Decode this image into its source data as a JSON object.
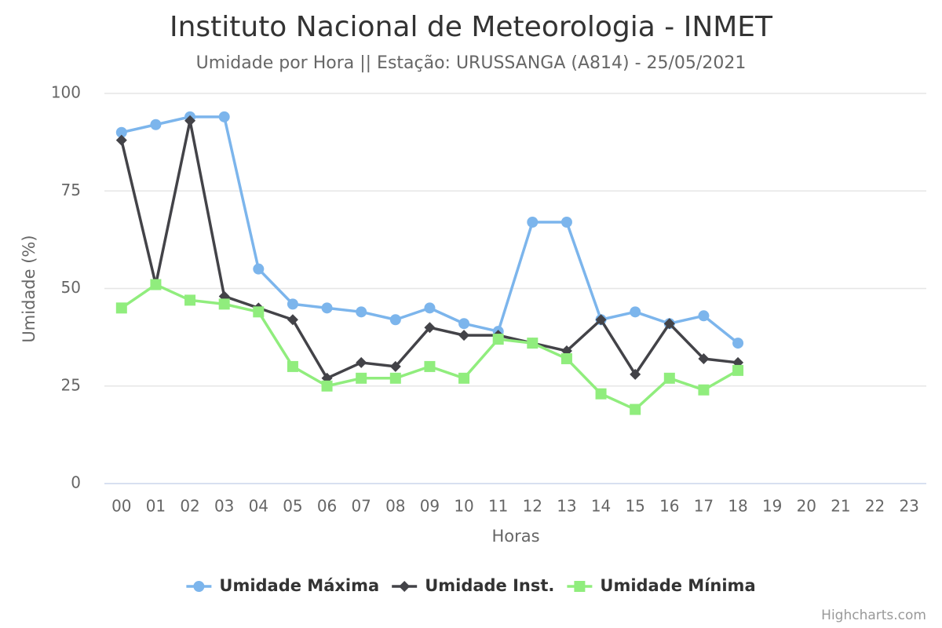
{
  "chart_data": {
    "type": "line",
    "title": "Instituto Nacional de Meteorologia - INMET",
    "subtitle": "Umidade por Hora || Estação: URUSSANGA (A814) - 25/05/2021",
    "x_label": "Horas",
    "y_label": "Umidade (%)",
    "credits": "Highcharts.com",
    "categories": [
      "00",
      "01",
      "02",
      "03",
      "04",
      "05",
      "06",
      "07",
      "08",
      "09",
      "10",
      "11",
      "12",
      "13",
      "14",
      "15",
      "16",
      "17",
      "18",
      "19",
      "20",
      "21",
      "22",
      "23"
    ],
    "series": [
      {
        "name": "Umidade Máxima",
        "color": "#7cb5ec",
        "marker": "circle",
        "values": [
          90,
          92,
          94,
          94,
          55,
          46,
          45,
          44,
          42,
          45,
          41,
          39,
          67,
          67,
          42,
          44,
          41,
          43,
          36,
          null,
          null,
          null,
          null,
          null
        ]
      },
      {
        "name": "Umidade Inst.",
        "color": "#434348",
        "marker": "diamond",
        "values": [
          88,
          51,
          93,
          48,
          45,
          42,
          27,
          31,
          30,
          40,
          38,
          38,
          36,
          34,
          42,
          28,
          41,
          32,
          31,
          null,
          null,
          null,
          null,
          null
        ]
      },
      {
        "name": "Umidade Mínima",
        "color": "#90ed7d",
        "marker": "square",
        "values": [
          45,
          51,
          47,
          46,
          44,
          30,
          25,
          27,
          27,
          30,
          27,
          37,
          36,
          32,
          23,
          19,
          27,
          24,
          29,
          null,
          null,
          null,
          null,
          null
        ]
      }
    ],
    "ylim": [
      0,
      100
    ],
    "yticks": [
      0,
      25,
      50,
      75,
      100
    ],
    "grid": true,
    "legend": "bottom"
  }
}
